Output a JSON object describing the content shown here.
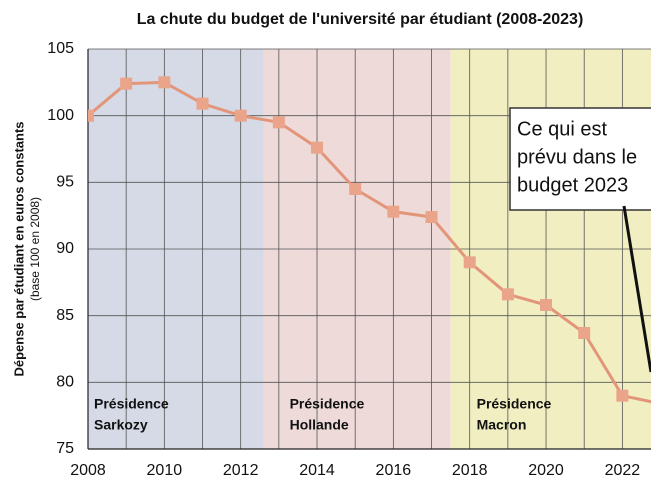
{
  "chart_data": {
    "type": "line",
    "title": "La chute du budget de l'université par étudiant (2008-2023)",
    "y_label": "Dépense par étudiant en euros constants",
    "y_sublabel": "(base 100 en 2008)",
    "x": [
      2008,
      2009,
      2010,
      2011,
      2012,
      2013,
      2014,
      2015,
      2016,
      2017,
      2018,
      2019,
      2020,
      2021,
      2022,
      2023
    ],
    "series": [
      {
        "color": "#e3957a",
        "marker_color": "#eaa48a",
        "values": [
          100,
          102.4,
          102.5,
          100.9,
          100,
          99.5,
          97.6,
          94.5,
          92.8,
          92.4,
          89,
          86.6,
          85.8,
          83.7,
          79,
          78.4
        ]
      }
    ],
    "xlim": [
      2008,
      2022.75
    ],
    "xticks": [
      2008,
      2010,
      2012,
      2014,
      2016,
      2018,
      2020,
      2022
    ],
    "x_minor_grid": [
      2009,
      2011,
      2013,
      2015,
      2017,
      2019,
      2021
    ],
    "ylim": [
      75,
      105
    ],
    "yticks": [
      75,
      80,
      85,
      90,
      95,
      100,
      105
    ],
    "grid": true,
    "regions": [
      {
        "lines": [
          "Présidence",
          "Sarkozy"
        ],
        "start": 2008,
        "end": 2012.6,
        "color": "#d5dae6"
      },
      {
        "lines": [
          "Présidence",
          "Hollande"
        ],
        "start": 2012.6,
        "end": 2017.5,
        "color": "#efdada"
      },
      {
        "lines": [
          "Présidence",
          "Macron"
        ],
        "start": 2017.5,
        "end": 2022.75,
        "color": "#f1efc2"
      }
    ],
    "annotation": {
      "lines": [
        "Ce qui est",
        "prévu dans le",
        "budget 2023"
      ]
    }
  }
}
